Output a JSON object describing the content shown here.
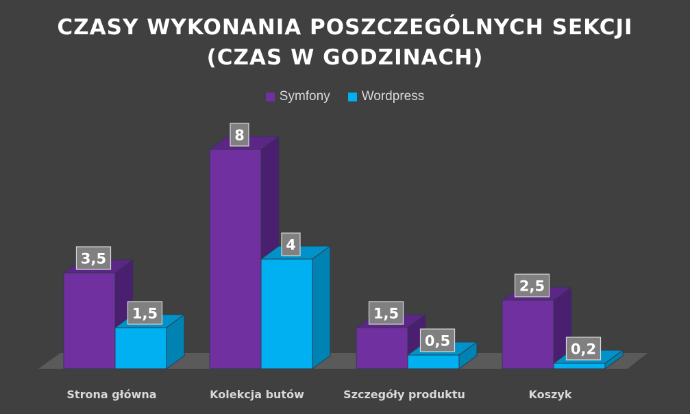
{
  "title_line1": "CZASY WYKONANIA POSZCZEGÓLNYCH SEKCJI",
  "title_line2": "(CZAS W GODZINACH)",
  "colors": {
    "background": "#404040",
    "floor": "#5a5a5a",
    "label_box": "#808080",
    "symfony_front": "#7030a0",
    "symfony_top": "#5b2686",
    "symfony_side": "#4b1f70",
    "wordpress_front": "#00b0f0",
    "wordpress_top": "#0092c8",
    "wordpress_side": "#0082b3"
  },
  "chart_data": {
    "type": "bar",
    "title": "CZASY WYKONANIA POSZCZEGÓLNYCH SEKCJI (CZAS W GODZINACH)",
    "categories": [
      "Strona główna",
      "Kolekcja butów",
      "Szczegóły produktu",
      "Koszyk"
    ],
    "series": [
      {
        "name": "Symfony",
        "values": [
          3.5,
          8,
          1.5,
          2.5
        ],
        "labels": [
          "3,5",
          "8",
          "1,5",
          "2,5"
        ]
      },
      {
        "name": "Wordpress",
        "values": [
          1.5,
          4,
          0.5,
          0.2
        ],
        "labels": [
          "1,5",
          "4",
          "0,5",
          "0,2"
        ]
      }
    ],
    "ylim": [
      0,
      8
    ],
    "grid": false,
    "legend": "top-center",
    "style": "3d-column"
  }
}
